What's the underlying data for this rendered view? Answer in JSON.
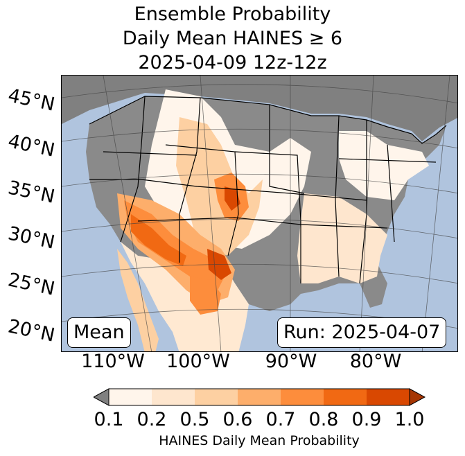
{
  "title": {
    "line1": "Ensemble Probability",
    "line2": "Daily Mean HAINES ≥ 6",
    "line3": "2025-04-09 12z-12z"
  },
  "map": {
    "region": "Continental United States",
    "lat_labels": [
      "45°N",
      "40°N",
      "35°N",
      "30°N",
      "25°N",
      "20°N"
    ],
    "lon_labels": [
      "110°W",
      "100°W",
      "90°W",
      "80°W"
    ],
    "ocean_color": "#b0c4de",
    "land_below_threshold_color": "#808080"
  },
  "labels": {
    "stat": "Mean",
    "run": "Run: 2025-04-07"
  },
  "colorbar": {
    "ticks": [
      "0.1",
      "0.2",
      "0.5",
      "0.6",
      "0.7",
      "0.8",
      "0.9",
      "1.0"
    ],
    "colors": [
      "#fff5eb",
      "#fee6ce",
      "#fdd0a2",
      "#fdae6b",
      "#fd8d3c",
      "#f16913",
      "#d94801"
    ],
    "under_color": "#808080",
    "over_color": "#a63603",
    "title": "HAINES Daily Mean Probability"
  }
}
